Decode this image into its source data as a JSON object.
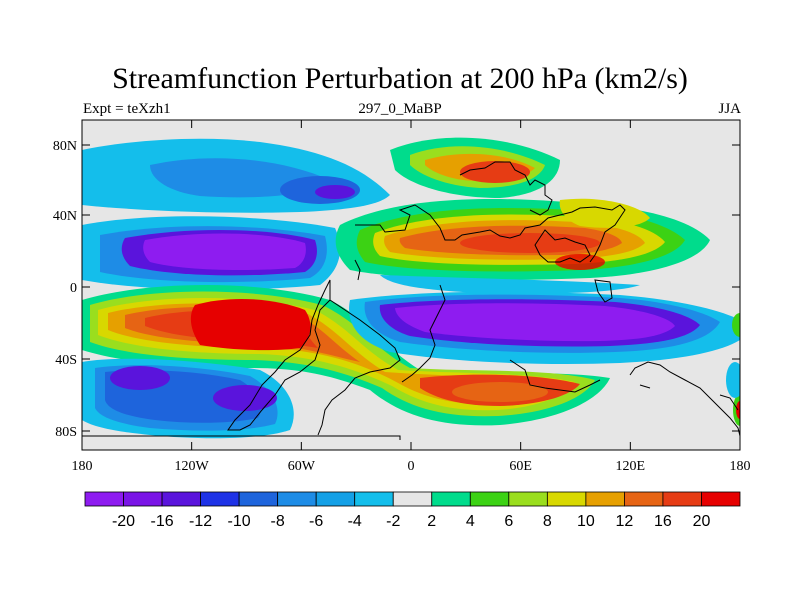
{
  "title": "Streamfunction Perturbation at 200 hPa (km2/s)",
  "left_label": "Expt = teXzh1",
  "center_label": "297_0_MaBP",
  "right_label": "JJA",
  "lat_labels": [
    "80N",
    "40N",
    "0",
    "40S",
    "80S"
  ],
  "lon_labels": [
    "180",
    "120W",
    "60W",
    "0",
    "60E",
    "120E",
    "180"
  ],
  "colorbar": {
    "labels": [
      "-20",
      "-16",
      "-12",
      "-10",
      "-8",
      "-6",
      "-4",
      "-2",
      "2",
      "4",
      "6",
      "8",
      "10",
      "12",
      "16",
      "20"
    ],
    "colors": [
      "#8e1cf0",
      "#7a14e6",
      "#5a14dc",
      "#1e32e6",
      "#1e64dc",
      "#1e8ce6",
      "#14a0e6",
      "#14beeb",
      "#e6e6e6",
      "#00dc8c",
      "#3cd214",
      "#9ade1e",
      "#d8d800",
      "#e6a000",
      "#e66414",
      "#e63c14",
      "#e60000"
    ]
  }
}
